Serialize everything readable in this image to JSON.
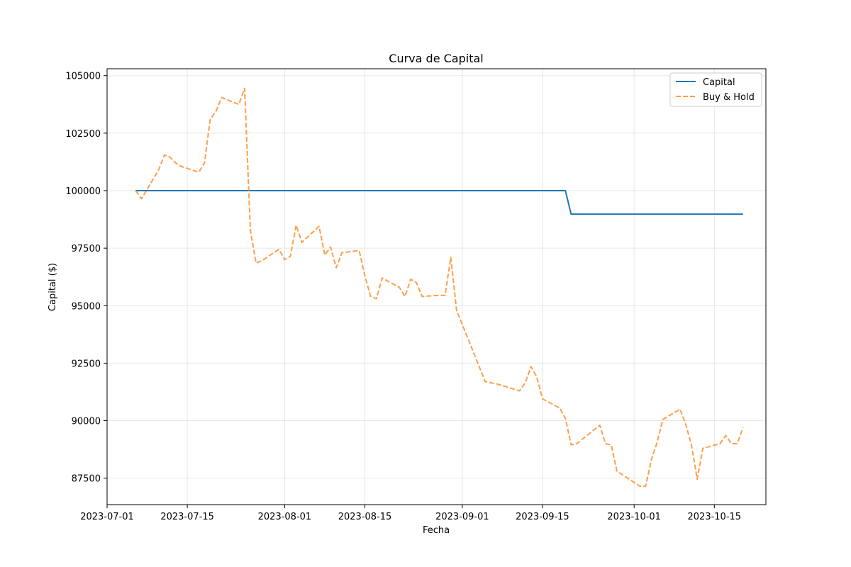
{
  "chart_data": {
    "type": "line",
    "title": "Curva de Capital",
    "xlabel": "Fecha",
    "ylabel": "Capital ($)",
    "grid": true,
    "legend_position": "top-right",
    "x_type": "date",
    "xlim": [
      "2023-07-01",
      "2023-10-24"
    ],
    "ylim": [
      86350,
      105300
    ],
    "x_ticks": [
      "2023-07-01",
      "2023-07-15",
      "2023-08-01",
      "2023-08-15",
      "2023-09-01",
      "2023-09-15",
      "2023-10-01",
      "2023-10-15"
    ],
    "y_ticks": [
      87500,
      90000,
      92500,
      95000,
      97500,
      100000,
      102500,
      105000
    ],
    "colors": {
      "capital": "#1f77b4",
      "buy_hold": "#ff7f0e"
    },
    "series": [
      {
        "name": "Capital",
        "style": "solid",
        "color": "#1f77b4",
        "x": [
          "2023-07-06",
          "2023-09-19",
          "2023-09-20",
          "2023-10-20"
        ],
        "y": [
          100000,
          100000,
          98980,
          98980
        ]
      },
      {
        "name": "Buy & Hold",
        "style": "dashed",
        "color": "#ff7f0e",
        "x": [
          "2023-07-06",
          "2023-07-07",
          "2023-07-10",
          "2023-07-11",
          "2023-07-12",
          "2023-07-13",
          "2023-07-14",
          "2023-07-17",
          "2023-07-18",
          "2023-07-19",
          "2023-07-20",
          "2023-07-21",
          "2023-07-24",
          "2023-07-25",
          "2023-07-26",
          "2023-07-27",
          "2023-07-28",
          "2023-07-31",
          "2023-08-01",
          "2023-08-02",
          "2023-08-03",
          "2023-08-04",
          "2023-08-07",
          "2023-08-08",
          "2023-08-09",
          "2023-08-10",
          "2023-08-11",
          "2023-08-14",
          "2023-08-15",
          "2023-08-16",
          "2023-08-17",
          "2023-08-18",
          "2023-08-21",
          "2023-08-22",
          "2023-08-23",
          "2023-08-24",
          "2023-08-25",
          "2023-08-28",
          "2023-08-29",
          "2023-08-30",
          "2023-08-31",
          "2023-09-05",
          "2023-09-06",
          "2023-09-07",
          "2023-09-11",
          "2023-09-12",
          "2023-09-13",
          "2023-09-14",
          "2023-09-15",
          "2023-09-18",
          "2023-09-19",
          "2023-09-20",
          "2023-09-21",
          "2023-09-22",
          "2023-09-25",
          "2023-09-26",
          "2023-09-27",
          "2023-09-28",
          "2023-10-02",
          "2023-10-03",
          "2023-10-04",
          "2023-10-05",
          "2023-10-06",
          "2023-10-09",
          "2023-10-10",
          "2023-10-11",
          "2023-10-12",
          "2023-10-13",
          "2023-10-16",
          "2023-10-17",
          "2023-10-18",
          "2023-10-19",
          "2023-10-20"
        ],
        "y": [
          100000,
          99650,
          100900,
          101550,
          101450,
          101200,
          101050,
          100800,
          101200,
          103100,
          103450,
          104050,
          103750,
          104450,
          98300,
          96850,
          96950,
          97450,
          97000,
          97150,
          98500,
          97750,
          98450,
          97200,
          97550,
          96650,
          97300,
          97400,
          96300,
          95400,
          95300,
          96200,
          95800,
          95400,
          96150,
          96000,
          95400,
          95450,
          95450,
          97100,
          94800,
          91700,
          91650,
          91600,
          91300,
          91650,
          92350,
          91900,
          90950,
          90550,
          90100,
          88950,
          89000,
          89200,
          89800,
          89000,
          88950,
          87800,
          87150,
          87150,
          88300,
          89050,
          90050,
          90500,
          89850,
          88950,
          87450,
          88800,
          89000,
          89350,
          89000,
          89000,
          89700
        ]
      }
    ]
  }
}
